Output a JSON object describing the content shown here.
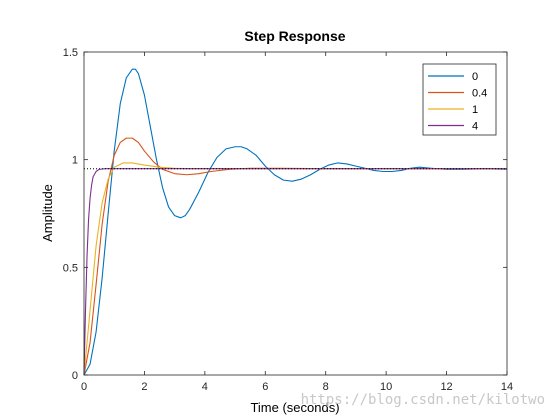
{
  "chart_data": {
    "type": "line",
    "title": "Step Response",
    "xlabel": "Time (seconds)",
    "ylabel": "Amplitude",
    "xlim": [
      0,
      14
    ],
    "ylim": [
      0,
      1.5
    ],
    "xticks": [
      0,
      2,
      4,
      6,
      8,
      10,
      12,
      14
    ],
    "yticks": [
      0,
      0.5,
      1,
      1.5
    ],
    "ytick_labels": [
      "0",
      "0.5",
      "1",
      "1.5"
    ],
    "grid": false,
    "legend_position": "top-right",
    "series": [
      {
        "name": "0",
        "color": "#0072BD",
        "x": [
          0,
          0.2,
          0.4,
          0.6,
          0.8,
          1.0,
          1.2,
          1.4,
          1.6,
          1.7,
          1.8,
          2.0,
          2.2,
          2.4,
          2.6,
          2.8,
          3.0,
          3.2,
          3.35,
          3.5,
          3.8,
          4.1,
          4.4,
          4.7,
          5.0,
          5.2,
          5.4,
          5.7,
          6.0,
          6.3,
          6.6,
          6.9,
          7.2,
          7.5,
          7.8,
          8.1,
          8.4,
          8.7,
          9.0,
          9.3,
          9.6,
          9.9,
          10.2,
          10.5,
          10.8,
          11.1,
          11.5,
          12.0,
          12.5,
          13.0,
          13.5,
          14.0
        ],
        "values": [
          0,
          0.05,
          0.2,
          0.45,
          0.75,
          1.04,
          1.26,
          1.38,
          1.42,
          1.42,
          1.4,
          1.3,
          1.15,
          1.0,
          0.87,
          0.78,
          0.74,
          0.73,
          0.74,
          0.77,
          0.85,
          0.94,
          1.01,
          1.05,
          1.06,
          1.06,
          1.05,
          1.02,
          0.97,
          0.93,
          0.905,
          0.9,
          0.91,
          0.93,
          0.955,
          0.975,
          0.985,
          0.98,
          0.97,
          0.96,
          0.95,
          0.945,
          0.945,
          0.95,
          0.96,
          0.965,
          0.96,
          0.955,
          0.955,
          0.957,
          0.957,
          0.955
        ]
      },
      {
        "name": "0.4",
        "color": "#D95319",
        "x": [
          0,
          0.2,
          0.4,
          0.6,
          0.8,
          1.0,
          1.2,
          1.4,
          1.6,
          1.8,
          2.0,
          2.3,
          2.6,
          3.0,
          3.4,
          3.8,
          4.2,
          4.8,
          5.5,
          6.5,
          8.0,
          10.0,
          12.0,
          14.0
        ],
        "values": [
          0,
          0.15,
          0.42,
          0.7,
          0.9,
          1.02,
          1.08,
          1.1,
          1.1,
          1.08,
          1.04,
          0.99,
          0.955,
          0.935,
          0.93,
          0.935,
          0.945,
          0.955,
          0.96,
          0.96,
          0.958,
          0.958,
          0.958,
          0.958
        ]
      },
      {
        "name": "1",
        "color": "#EDB120",
        "x": [
          0,
          0.2,
          0.4,
          0.6,
          0.8,
          1.0,
          1.3,
          1.6,
          2.0,
          2.5,
          3.0,
          3.5,
          4.0,
          5.0,
          6.0,
          8.0,
          10.0,
          12.0,
          14.0
        ],
        "values": [
          0,
          0.3,
          0.6,
          0.8,
          0.91,
          0.965,
          0.985,
          0.985,
          0.975,
          0.965,
          0.96,
          0.958,
          0.958,
          0.958,
          0.958,
          0.958,
          0.958,
          0.958,
          0.958
        ]
      },
      {
        "name": "4",
        "color": "#7E2F8E",
        "x": [
          0,
          0.05,
          0.1,
          0.15,
          0.2,
          0.25,
          0.3,
          0.4,
          0.5,
          0.7,
          1.0,
          2.0,
          4.0,
          6.0,
          8.0,
          10.0,
          12.0,
          14.0
        ],
        "values": [
          0,
          0.3,
          0.55,
          0.72,
          0.82,
          0.88,
          0.92,
          0.945,
          0.955,
          0.958,
          0.958,
          0.958,
          0.958,
          0.958,
          0.958,
          0.958,
          0.958,
          0.958
        ]
      }
    ],
    "steady_state_line": {
      "value": 0.958,
      "x": [
        0,
        14
      ],
      "color": "#000000",
      "style": "dotted"
    }
  },
  "watermark": "https://blog.csdn.net/kilotwo"
}
